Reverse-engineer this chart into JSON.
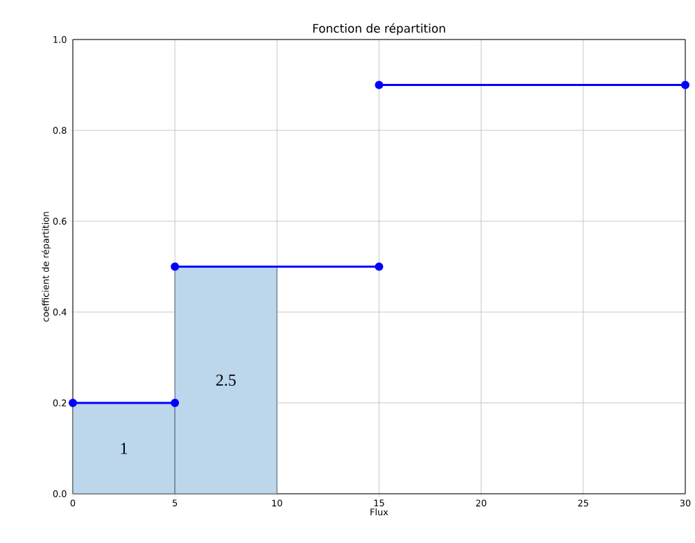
{
  "chart_data": {
    "type": "histogram",
    "title": "Fonction de répartition",
    "xlabel": "Flux",
    "ylabel": "coefficient de répartition",
    "series": [
      {
        "bins": [
          0,
          5,
          10
        ],
        "values": [
          0.2,
          0.5
        ],
        "color": "#bcd6ec"
      },
      {
        "type": "line",
        "x": [
          0,
          5
        ],
        "values": [
          0.2,
          0.2
        ],
        "color": "#0000ff"
      },
      {
        "type": "line",
        "x": [
          5,
          15
        ],
        "values": [
          0.5,
          0.5
        ],
        "color": "#0000ff"
      },
      {
        "type": "line",
        "x": [
          15,
          30
        ],
        "values": [
          0.9,
          0.9
        ],
        "color": "#0000ff"
      }
    ],
    "annotations": [
      "1",
      "2.5"
    ],
    "xlim": [
      0,
      30
    ],
    "ylim": [
      0,
      1
    ],
    "xticks": [
      0,
      5,
      10,
      15,
      20,
      25,
      30
    ],
    "yticks": [
      {
        "value": 0,
        "label": "0.0"
      },
      {
        "value": 0.2,
        "label": "0.2"
      },
      {
        "value": 0.4,
        "label": "0.4"
      },
      {
        "value": 0.6,
        "label": "0.6"
      },
      {
        "value": 0.8,
        "label": "0.8"
      },
      {
        "value": 1,
        "label": "1.0"
      }
    ],
    "grid": true,
    "marker": "circle"
  }
}
